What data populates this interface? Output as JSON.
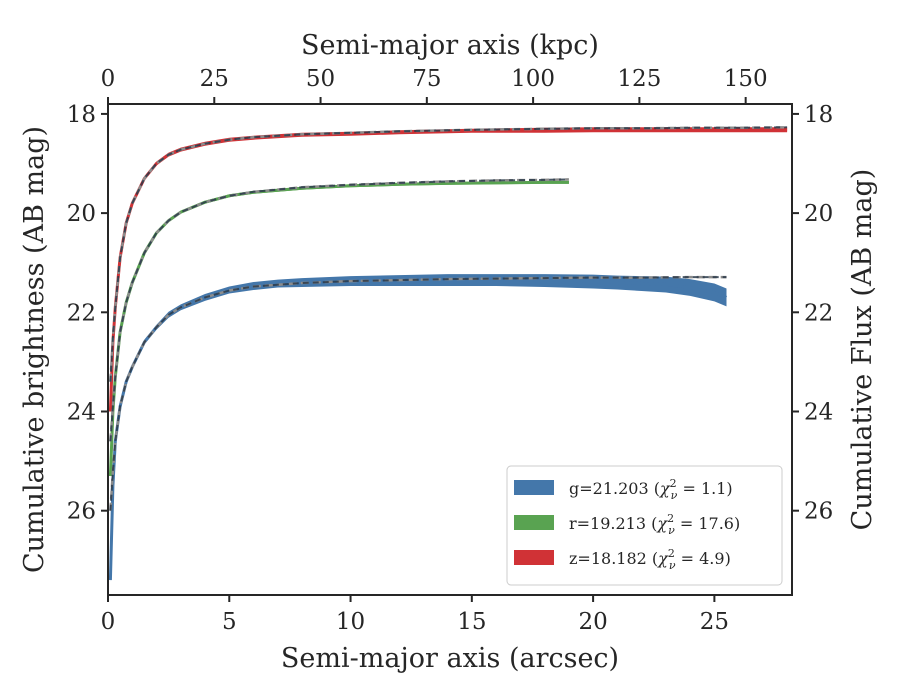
{
  "chart_data": {
    "type": "line",
    "xlabel": "Semi-major axis (arcsec)",
    "ylabel": "Cumulative brightness (AB mag)",
    "y2label": "Cumulative Flux (AB mag)",
    "x2label": "Semi-major axis (kpc)",
    "xlim": [
      0,
      28.2
    ],
    "ylim": [
      27.7,
      17.8
    ],
    "y_inverted": true,
    "x2lim": [
      0,
      160.9
    ],
    "xticks": [
      "0",
      "5",
      "10",
      "15",
      "20",
      "25"
    ],
    "yticks": [
      "18",
      "20",
      "22",
      "24",
      "26"
    ],
    "x2ticks": [
      "0",
      "25",
      "50",
      "75",
      "100",
      "125",
      "150"
    ],
    "legend_position": "lower right",
    "series": [
      {
        "name": "g=21.203 (χ²ᵥ = 1.1)",
        "legend": {
          "main": "g=21.203 (",
          "chi": "χ",
          "sup": "2",
          "sub": "ν",
          "rest": " = 1.1)"
        },
        "color": "#4477aa",
        "x": [
          0.1,
          0.2,
          0.3,
          0.5,
          0.75,
          1.0,
          1.5,
          2.0,
          2.5,
          3.0,
          4.0,
          5.0,
          6.0,
          7.0,
          8.0,
          10.0,
          12.0,
          14.0,
          16.0,
          18.0,
          20.0,
          21.0,
          22.0,
          23.0,
          24.0,
          25.0,
          25.5
        ],
        "y": [
          27.4,
          25.5,
          24.6,
          23.9,
          23.4,
          23.1,
          22.6,
          22.3,
          22.05,
          21.9,
          21.7,
          21.55,
          21.47,
          21.42,
          21.4,
          21.37,
          21.36,
          21.35,
          21.35,
          21.36,
          21.38,
          21.4,
          21.42,
          21.44,
          21.5,
          21.6,
          21.7
        ],
        "band": [
          0.04,
          0.04,
          0.04,
          0.04,
          0.04,
          0.04,
          0.05,
          0.05,
          0.06,
          0.06,
          0.07,
          0.07,
          0.08,
          0.08,
          0.09,
          0.1,
          0.11,
          0.12,
          0.12,
          0.13,
          0.14,
          0.14,
          0.15,
          0.16,
          0.17,
          0.18,
          0.18
        ]
      },
      {
        "name": "r=19.213 (χ²ᵥ = 17.6)",
        "legend": {
          "main": "r=19.213 (",
          "chi": "χ",
          "sup": "2",
          "sub": "ν",
          "rest": " = 17.6)"
        },
        "color": "#59a351",
        "x": [
          0.1,
          0.2,
          0.3,
          0.5,
          0.75,
          1.0,
          1.5,
          2.0,
          2.5,
          3.0,
          4.0,
          5.0,
          6.0,
          8.0,
          10.0,
          12.0,
          14.0,
          16.0,
          18.0,
          19.0
        ],
        "y": [
          25.3,
          24.0,
          23.3,
          22.4,
          21.8,
          21.4,
          20.8,
          20.4,
          20.15,
          19.98,
          19.78,
          19.65,
          19.58,
          19.5,
          19.45,
          19.42,
          19.4,
          19.39,
          19.38,
          19.38
        ],
        "band": [
          0.03,
          0.03,
          0.03,
          0.03,
          0.03,
          0.03,
          0.03,
          0.03,
          0.03,
          0.03,
          0.03,
          0.03,
          0.03,
          0.03,
          0.03,
          0.03,
          0.03,
          0.03,
          0.03,
          0.03
        ]
      },
      {
        "name": "z=18.182 (χ²ᵥ = 4.9)",
        "legend": {
          "main": "z=18.182 (",
          "chi": "χ",
          "sup": "2",
          "sub": "ν",
          "rest": " = 4.9)"
        },
        "color": "#d03236",
        "x": [
          0.1,
          0.2,
          0.3,
          0.5,
          0.75,
          1.0,
          1.5,
          2.0,
          2.5,
          3.0,
          4.0,
          5.0,
          6.0,
          8.0,
          10.0,
          12.0,
          15.0,
          18.0,
          20.0,
          22.0,
          24.0,
          26.0,
          28.0
        ],
        "y": [
          24.0,
          22.6,
          21.9,
          20.9,
          20.2,
          19.8,
          19.3,
          19.0,
          18.82,
          18.72,
          18.6,
          18.52,
          18.48,
          18.42,
          18.4,
          18.37,
          18.34,
          18.33,
          18.32,
          18.32,
          18.32,
          18.32,
          18.32
        ],
        "band": [
          0.04,
          0.04,
          0.04,
          0.04,
          0.04,
          0.04,
          0.04,
          0.04,
          0.04,
          0.04,
          0.04,
          0.04,
          0.04,
          0.04,
          0.04,
          0.04,
          0.04,
          0.05,
          0.05,
          0.05,
          0.05,
          0.05,
          0.05
        ]
      }
    ],
    "model_fits": [
      {
        "series": "g",
        "style": "dashed",
        "x": [
          0.1,
          0.2,
          0.3,
          0.5,
          0.75,
          1.0,
          1.5,
          2.0,
          2.5,
          3.0,
          4.0,
          5.0,
          6.0,
          8.0,
          10.0,
          12.0,
          14.0,
          16.0,
          18.0,
          20.0,
          22.0,
          24.0,
          25.5
        ],
        "y": [
          26.0,
          25.2,
          24.6,
          23.9,
          23.4,
          23.1,
          22.6,
          22.3,
          22.05,
          21.9,
          21.7,
          21.56,
          21.48,
          21.41,
          21.37,
          21.35,
          21.33,
          21.32,
          21.31,
          21.3,
          21.3,
          21.29,
          21.29
        ]
      },
      {
        "series": "r",
        "style": "dashed",
        "x": [
          0.1,
          0.2,
          0.3,
          0.5,
          0.75,
          1.0,
          1.5,
          2.0,
          2.5,
          3.0,
          4.0,
          5.0,
          6.0,
          8.0,
          10.0,
          12.0,
          14.0,
          16.0,
          18.0,
          19.0
        ],
        "y": [
          24.6,
          23.9,
          23.3,
          22.4,
          21.8,
          21.4,
          20.8,
          20.4,
          20.15,
          19.98,
          19.78,
          19.65,
          19.57,
          19.48,
          19.43,
          19.39,
          19.36,
          19.34,
          19.33,
          19.32
        ]
      },
      {
        "series": "z",
        "style": "dashed",
        "x": [
          0.1,
          0.2,
          0.3,
          0.5,
          0.75,
          1.0,
          1.5,
          2.0,
          2.5,
          3.0,
          4.0,
          5.0,
          6.0,
          8.0,
          10.0,
          12.0,
          15.0,
          18.0,
          20.0,
          22.0,
          24.0,
          26.0,
          28.0
        ],
        "y": [
          23.4,
          22.5,
          21.9,
          20.9,
          20.2,
          19.8,
          19.3,
          19.0,
          18.82,
          18.72,
          18.6,
          18.52,
          18.47,
          18.41,
          18.38,
          18.35,
          18.32,
          18.3,
          18.29,
          18.29,
          18.28,
          18.28,
          18.27
        ]
      }
    ]
  }
}
